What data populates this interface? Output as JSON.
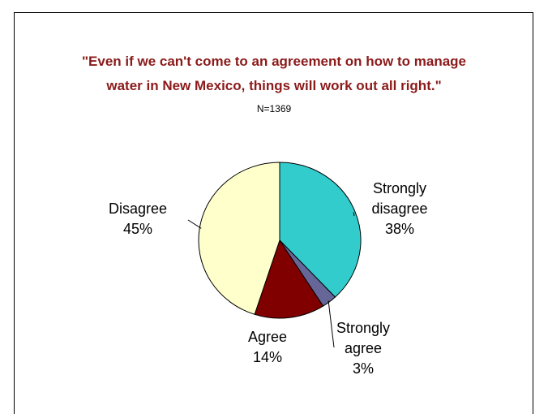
{
  "chart_data": {
    "type": "pie",
    "title_line1": "\"Even if we can't come to an agreement on how to manage",
    "title_line2": "water in New Mexico, things will work out all right.\"",
    "subtitle": "N=1369",
    "slices": [
      {
        "label_lines": [
          "Strongly",
          "disagree"
        ],
        "value_text": "38%",
        "value": 38,
        "color": "#33cccc"
      },
      {
        "label_lines": [
          "Strongly",
          "agree"
        ],
        "value_text": "3%",
        "value": 3,
        "color": "#666699"
      },
      {
        "label_lines": [
          "Agree"
        ],
        "value_text": "14%",
        "value": 14,
        "color": "#800000"
      },
      {
        "label_lines": [
          "Disagree"
        ],
        "value_text": "45%",
        "value": 45,
        "color": "#ffffcc"
      }
    ]
  }
}
